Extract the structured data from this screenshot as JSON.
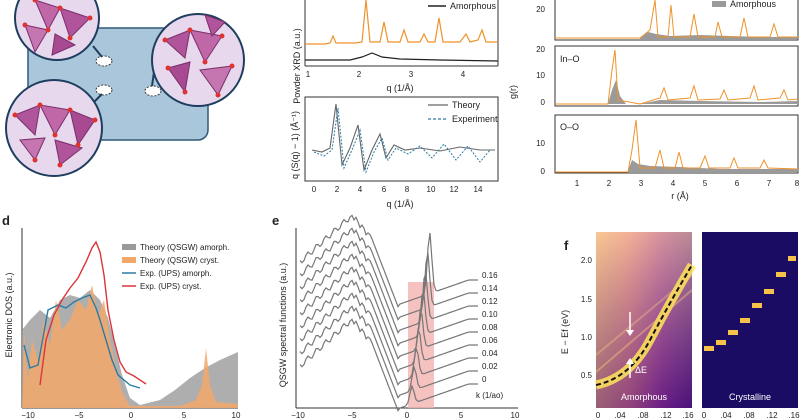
{
  "panel_letters": {
    "d": "d",
    "e": "e",
    "f": "f"
  },
  "colors": {
    "orange": "#f0922a",
    "gray": "#9a9a9a",
    "blue": "#2a7ba6",
    "red": "#d9353a",
    "purple": "#b0549b",
    "pink": "#f3b3b0",
    "slab": "#a9c6da"
  },
  "top_middle_upper": {
    "ylabel": "Powder XRD (a.u.)",
    "legend": "Amorphous",
    "xlabel": "q (1/Å)",
    "xticks": [
      "1",
      "2",
      "3",
      "4"
    ]
  },
  "top_middle_lower": {
    "ylabel": "q (S(q) − 1) (Å⁻¹)",
    "legend_theory": "Theory",
    "legend_experiment": "Experiment",
    "xlabel": "q (1/Å)",
    "xticks": [
      "0",
      "2",
      "4",
      "6",
      "8",
      "10",
      "12",
      "14"
    ]
  },
  "top_right": {
    "ylabel": "g(r)",
    "legend": "Amorphous",
    "subpanel_labels": [
      "In–O",
      "O–O"
    ],
    "yticks_top": [
      "20"
    ],
    "yticks_mid": [
      "0",
      "10",
      "20"
    ],
    "yticks_bot": [
      "0",
      "10"
    ],
    "xlabel": "r (Å)",
    "xticks": [
      "1",
      "2",
      "3",
      "4",
      "5",
      "6",
      "7",
      "8"
    ]
  },
  "panel_d": {
    "ylabel": "Electronic DOS (a.u.)",
    "legend": [
      {
        "label": "Theory (QSGW) amorph."
      },
      {
        "label": "Theory (QSGW) cryst."
      },
      {
        "label": "Exp. (UPS) amorph."
      },
      {
        "label": "Exp. (UPS) cryst."
      }
    ],
    "xticks": [
      "−10",
      "−5",
      "0",
      "5",
      "10"
    ]
  },
  "panel_e": {
    "ylabel": "QSGW spectral functions (a.u.)",
    "k_labels": [
      "0.16",
      "0.14",
      "0.12",
      "0.10",
      "0.08",
      "0.06",
      "0.04",
      "0.02",
      "0"
    ],
    "k_axis_label": "k (1/ao)",
    "xticks": [
      "−10",
      "−5",
      "0",
      "5",
      "10"
    ]
  },
  "panel_f": {
    "ylabel": "E − Ef (eV)",
    "yticks": [
      "2.0",
      "1.5",
      "1.0",
      "0.5"
    ],
    "amorphous_label": "Amorphous",
    "crystalline_label": "Crystalline",
    "delta_label": "ΔE",
    "xticks_left": [
      "0",
      ".04",
      ".08",
      ".12",
      ".16"
    ],
    "xticks_right": [
      "0",
      ".04",
      ".08",
      ".12",
      ".16"
    ]
  }
}
